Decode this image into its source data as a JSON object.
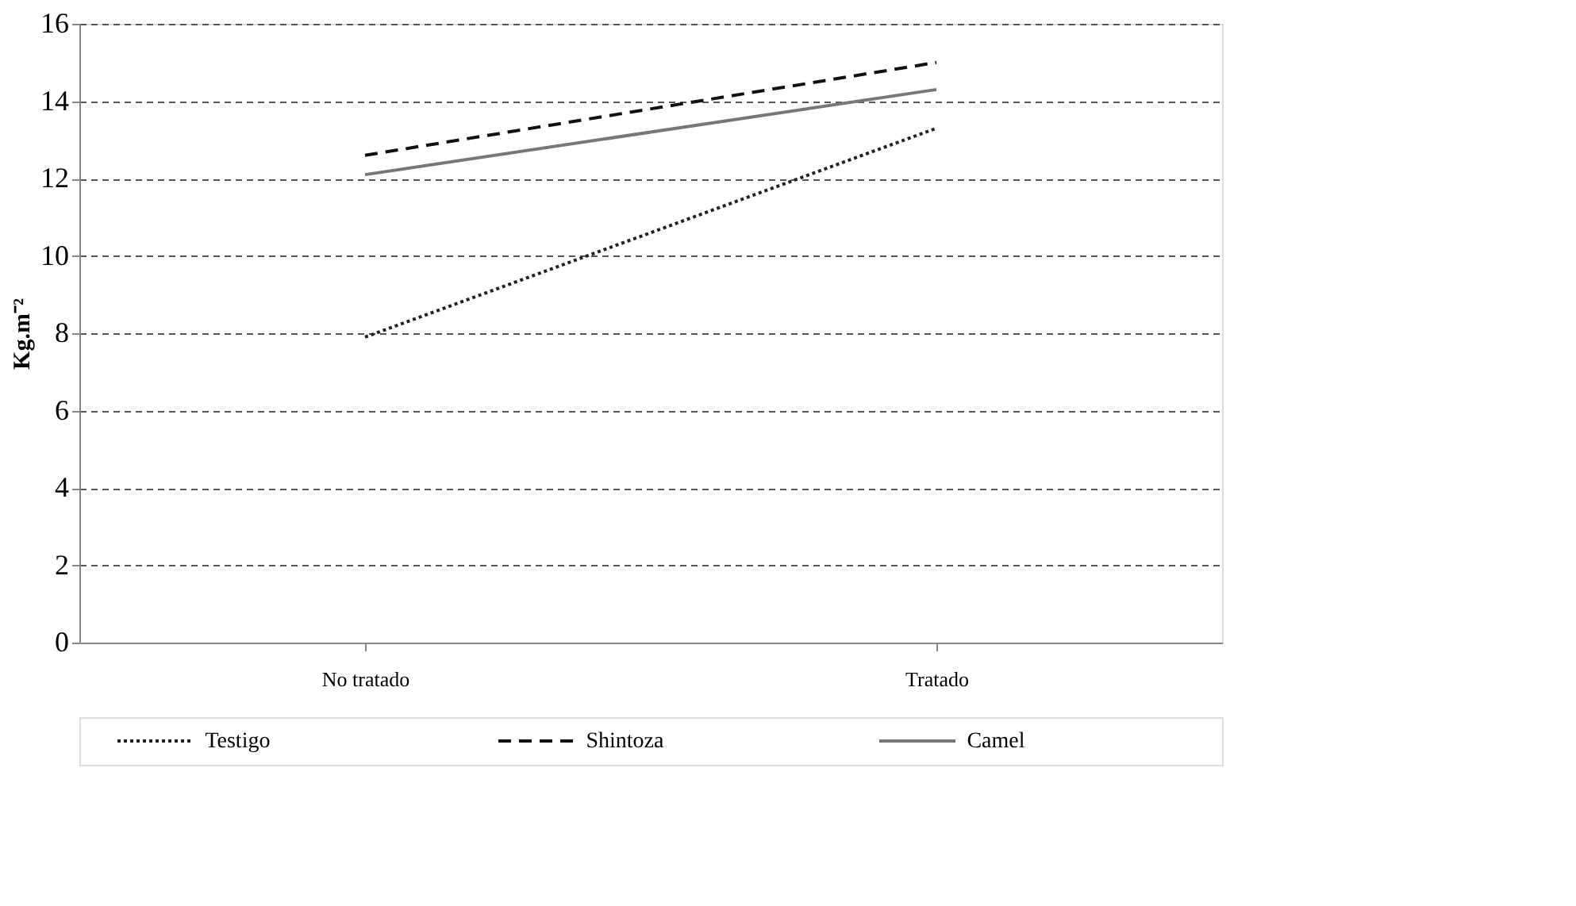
{
  "chart_data": {
    "type": "line",
    "ylabel": "Kg.m⁻²",
    "categories": [
      "No tratado",
      "Tratado"
    ],
    "series": [
      {
        "name": "Testigo",
        "color": "#222222",
        "line_style": "dotted",
        "values": [
          7.9,
          13.3
        ]
      },
      {
        "name": "Shintoza",
        "color": "#111111",
        "line_style": "dashed",
        "values": [
          12.6,
          15.0
        ]
      },
      {
        "name": "Camel",
        "color": "#777777",
        "line_style": "solid",
        "values": [
          12.1,
          14.3
        ]
      }
    ],
    "ylim": [
      0,
      16
    ],
    "yticks": [
      0,
      2,
      4,
      6,
      8,
      10,
      12,
      14,
      16
    ],
    "grid": "y",
    "legend": "bottom",
    "marker": "none"
  }
}
